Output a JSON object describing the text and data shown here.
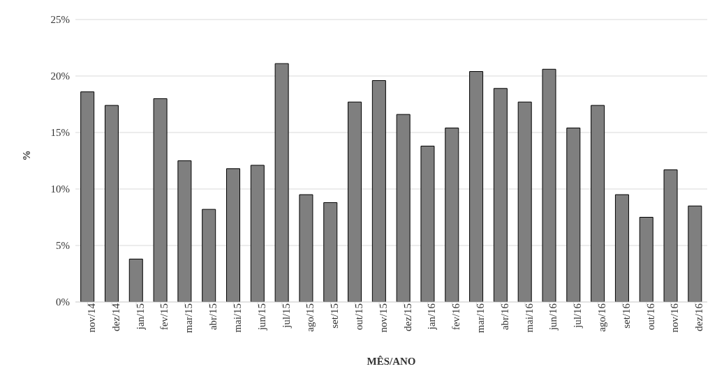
{
  "chart_data": {
    "type": "bar",
    "xlabel": "MÊS/ANO",
    "ylabel": "%",
    "categories": [
      "nov/14",
      "dez/14",
      "jan/15",
      "fev/15",
      "mar/15",
      "abr/15",
      "mai/15",
      "jun/15",
      "jul/15",
      "ago/15",
      "set/15",
      "out/15",
      "nov/15",
      "dez/15",
      "jan/16",
      "fev/16",
      "mar/16",
      "abr/16",
      "mai/16",
      "jun/16",
      "jul/16",
      "ago/16",
      "set/16",
      "out/16",
      "nov/16",
      "dez/16"
    ],
    "values": [
      18.6,
      17.4,
      3.8,
      18.0,
      12.5,
      8.2,
      11.8,
      12.1,
      21.1,
      9.5,
      8.8,
      17.7,
      19.6,
      16.6,
      13.8,
      15.4,
      20.4,
      18.9,
      17.7,
      20.6,
      15.4,
      17.4,
      9.5,
      7.5,
      11.7,
      8.5
    ],
    "color": "#7f7f7f",
    "ylim": [
      0,
      25
    ],
    "yticks": [
      {
        "value": 0,
        "label": "0%"
      },
      {
        "value": 5,
        "label": "5%"
      },
      {
        "value": 10,
        "label": "10%"
      },
      {
        "value": 15,
        "label": "15%"
      },
      {
        "value": 20,
        "label": "20%"
      },
      {
        "value": 25,
        "label": "25%"
      }
    ],
    "grid": "y"
  }
}
